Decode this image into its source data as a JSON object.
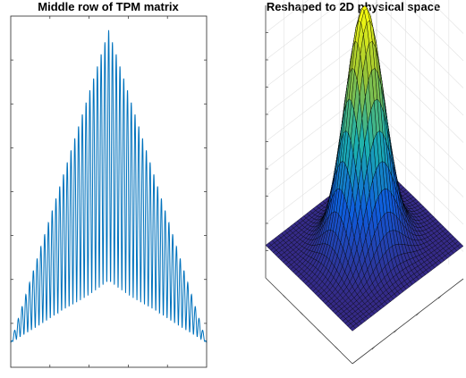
{
  "titles": {
    "left": "Middle row of TPM matrix",
    "right": "Reshaped to 2D physical space"
  },
  "chart_data": [
    {
      "type": "line",
      "title": "Middle row of TPM matrix",
      "xlabel": "",
      "ylabel": "",
      "grid": false,
      "legend": "none",
      "description_of_data": "Single oscillating series (~52 peaks). Upper envelope: triangular, rising from ~0.07 at the edges to ~0.96 at the center. Lower envelope: rises from ~0.07 at the edges to ~0.24 at the center.",
      "x_range": [
        0,
        1
      ],
      "y_range": [
        0,
        1
      ],
      "n_peaks": 52,
      "upper_envelope": {
        "x": [
          0,
          0.5,
          1
        ],
        "y": [
          0.07,
          0.96,
          0.07
        ]
      },
      "lower_envelope": {
        "x": [
          0,
          0.5,
          1
        ],
        "y": [
          0.07,
          0.24,
          0.07
        ]
      },
      "series": [
        {
          "color": "#0072bd"
        }
      ]
    },
    {
      "type": "surface",
      "title": "Reshaped to 2D physical space",
      "xlabel": "",
      "ylabel": "",
      "zlabel": "",
      "grid": true,
      "colormap": "parula",
      "grid_size": [
        36,
        36
      ],
      "peak_height": 1.0,
      "base_height": 0.12,
      "colors": {
        "low": "#352a87",
        "mid_low": "#0f5cdd",
        "mid": "#1bb1b0",
        "mid_high": "#91c13a",
        "high": "#f9fb0e"
      }
    }
  ]
}
